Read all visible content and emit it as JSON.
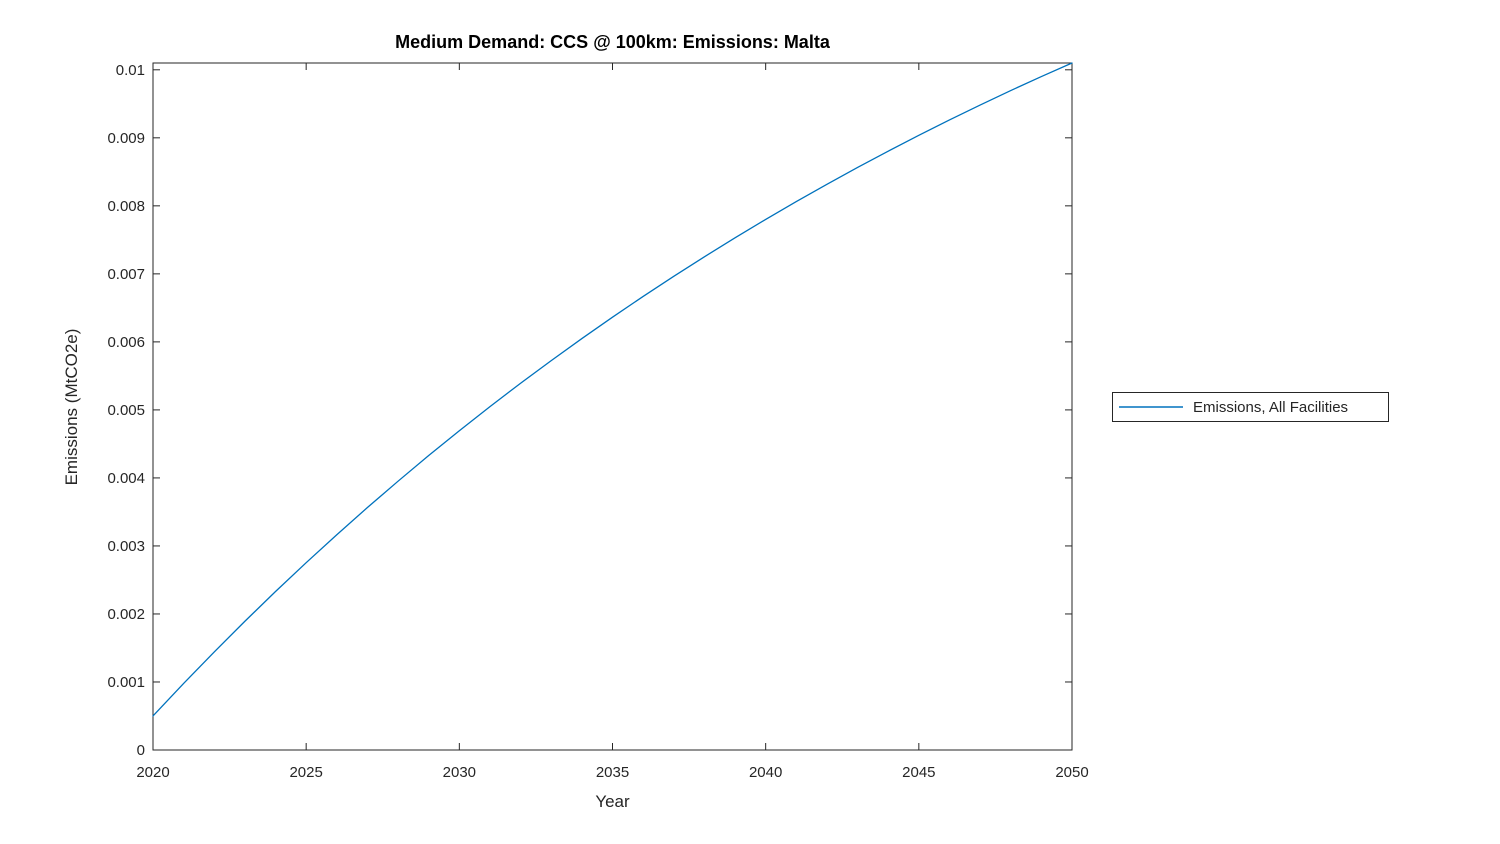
{
  "figure": {
    "background": "#ffffff"
  },
  "chart_data": {
    "type": "line",
    "title": "Medium Demand: CCS @ 100km: Emissions: Malta",
    "xlabel": "Year",
    "ylabel": "Emissions (MtCO2e)",
    "xlim": [
      2020,
      2050
    ],
    "ylim": [
      0,
      0.0101
    ],
    "xticks": [
      2020,
      2025,
      2030,
      2035,
      2040,
      2045,
      2050
    ],
    "xtick_labels": [
      "2020",
      "2025",
      "2030",
      "2035",
      "2040",
      "2045",
      "2050"
    ],
    "yticks": [
      0,
      0.001,
      0.002,
      0.003,
      0.004,
      0.005,
      0.006,
      0.007,
      0.008,
      0.009,
      0.01
    ],
    "ytick_labels": [
      "0",
      "0.001",
      "0.002",
      "0.003",
      "0.004",
      "0.005",
      "0.006",
      "0.007",
      "0.008",
      "0.009",
      "0.01"
    ],
    "grid": false,
    "box": true,
    "axis_color": "#262626",
    "legend": {
      "position": "outside-right",
      "entries": [
        {
          "label": "Emissions, All Facilities",
          "color": "#0072BD"
        }
      ]
    },
    "series": [
      {
        "name": "Emissions, All Facilities",
        "color": "#0072BD",
        "x": [
          2020,
          2021,
          2022,
          2023,
          2024,
          2025,
          2026,
          2027,
          2028,
          2029,
          2030,
          2031,
          2032,
          2033,
          2034,
          2035,
          2036,
          2037,
          2038,
          2039,
          2040,
          2041,
          2042,
          2043,
          2044,
          2045,
          2046,
          2047,
          2048,
          2049,
          2050
        ],
        "y": [
          0.0005,
          0.000978,
          0.001442,
          0.001893,
          0.00233,
          0.002754,
          0.003165,
          0.003565,
          0.003952,
          0.004329,
          0.004694,
          0.005048,
          0.005392,
          0.005725,
          0.006049,
          0.006363,
          0.006668,
          0.006964,
          0.007251,
          0.00753,
          0.0078,
          0.008063,
          0.008317,
          0.008565,
          0.008804,
          0.009037,
          0.009263,
          0.009482,
          0.009695,
          0.009901,
          0.0101
        ]
      }
    ]
  }
}
